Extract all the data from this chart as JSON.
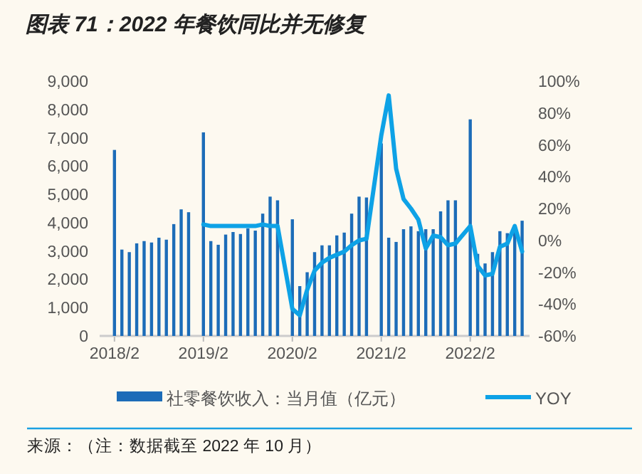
{
  "chart_data": {
    "type": "bar",
    "title": "图表 71：2022 年餐饮同比并无修复",
    "x": [
      "2018-02",
      "2018-03",
      "2018-04",
      "2018-05",
      "2018-06",
      "2018-07",
      "2018-08",
      "2018-09",
      "2018-10",
      "2018-11",
      "2018-12",
      "2019-02",
      "2019-03",
      "2019-04",
      "2019-05",
      "2019-06",
      "2019-07",
      "2019-08",
      "2019-09",
      "2019-10",
      "2019-11",
      "2019-12",
      "2020-02",
      "2020-03",
      "2020-04",
      "2020-05",
      "2020-06",
      "2020-07",
      "2020-08",
      "2020-09",
      "2020-10",
      "2020-11",
      "2020-12",
      "2021-02",
      "2021-03",
      "2021-04",
      "2021-05",
      "2021-06",
      "2021-07",
      "2021-08",
      "2021-09",
      "2021-10",
      "2021-11",
      "2021-12",
      "2022-02",
      "2022-03",
      "2022-04",
      "2022-05",
      "2022-06",
      "2022-07",
      "2022-08",
      "2022-09"
    ],
    "series": [
      {
        "name": "社零餐饮收入：当月值（亿元）",
        "color": "#1c6cb8",
        "values": [
          6570,
          3050,
          2960,
          3270,
          3350,
          3300,
          3470,
          3400,
          3950,
          4470,
          4370,
          7190,
          3350,
          3220,
          3580,
          3670,
          3600,
          3800,
          3720,
          4320,
          4920,
          4790,
          4120,
          1760,
          2250,
          2960,
          3200,
          3200,
          3550,
          3650,
          4320,
          4920,
          4890,
          6800,
          3470,
          3320,
          3770,
          3870,
          3700,
          3770,
          3770,
          4400,
          4790,
          4790,
          7650,
          2900,
          2560,
          2960,
          3700,
          3630,
          3830,
          4070
        ]
      },
      {
        "name": "YOY",
        "type": "line",
        "axis": "y2",
        "color": "#0ea2e6",
        "values": [
          null,
          null,
          null,
          null,
          null,
          null,
          null,
          null,
          null,
          null,
          null,
          10,
          9,
          9,
          9,
          9,
          9,
          9,
          9,
          10,
          9,
          9,
          -43,
          -47,
          -31,
          -19,
          -14,
          -11,
          -9,
          -7,
          -3,
          0,
          1,
          66,
          91,
          45,
          26,
          20,
          13,
          -5,
          3,
          2,
          -3,
          -2,
          9,
          -16,
          -22,
          -21,
          -4,
          -2,
          9,
          -7
        ]
      }
    ],
    "xlim": [
      "2017-12",
      "2022-10"
    ],
    "xticks": [
      {
        "value": "2018-02",
        "label": "2018/2"
      },
      {
        "value": "2019-02",
        "label": "2019/2"
      },
      {
        "value": "2020-02",
        "label": "2020/2"
      },
      {
        "value": "2021-02",
        "label": "2021/2"
      },
      {
        "value": "2022-02",
        "label": "2022/2"
      }
    ],
    "ylim": [
      0,
      9000
    ],
    "yticks": [
      {
        "value": 0,
        "label": "0"
      },
      {
        "value": 1000,
        "label": "1,000"
      },
      {
        "value": 2000,
        "label": "2,000"
      },
      {
        "value": 3000,
        "label": "3,000"
      },
      {
        "value": 4000,
        "label": "4,000"
      },
      {
        "value": 5000,
        "label": "5,000"
      },
      {
        "value": 6000,
        "label": "6,000"
      },
      {
        "value": 7000,
        "label": "7,000"
      },
      {
        "value": 8000,
        "label": "8,000"
      },
      {
        "value": 9000,
        "label": "9,000"
      }
    ],
    "y2lim": [
      -60,
      100
    ],
    "y2ticks": [
      {
        "value": -60,
        "label": "-60%"
      },
      {
        "value": -40,
        "label": "-40%"
      },
      {
        "value": -20,
        "label": "-20%"
      },
      {
        "value": 0,
        "label": "0%"
      },
      {
        "value": 20,
        "label": "20%"
      },
      {
        "value": 40,
        "label": "40%"
      },
      {
        "value": 60,
        "label": "60%"
      },
      {
        "value": 80,
        "label": "80%"
      },
      {
        "value": 100,
        "label": "100%"
      }
    ],
    "legend": "bottom",
    "annotations": [
      "来源：（注：数据截至 2022 年 10 月）"
    ]
  }
}
